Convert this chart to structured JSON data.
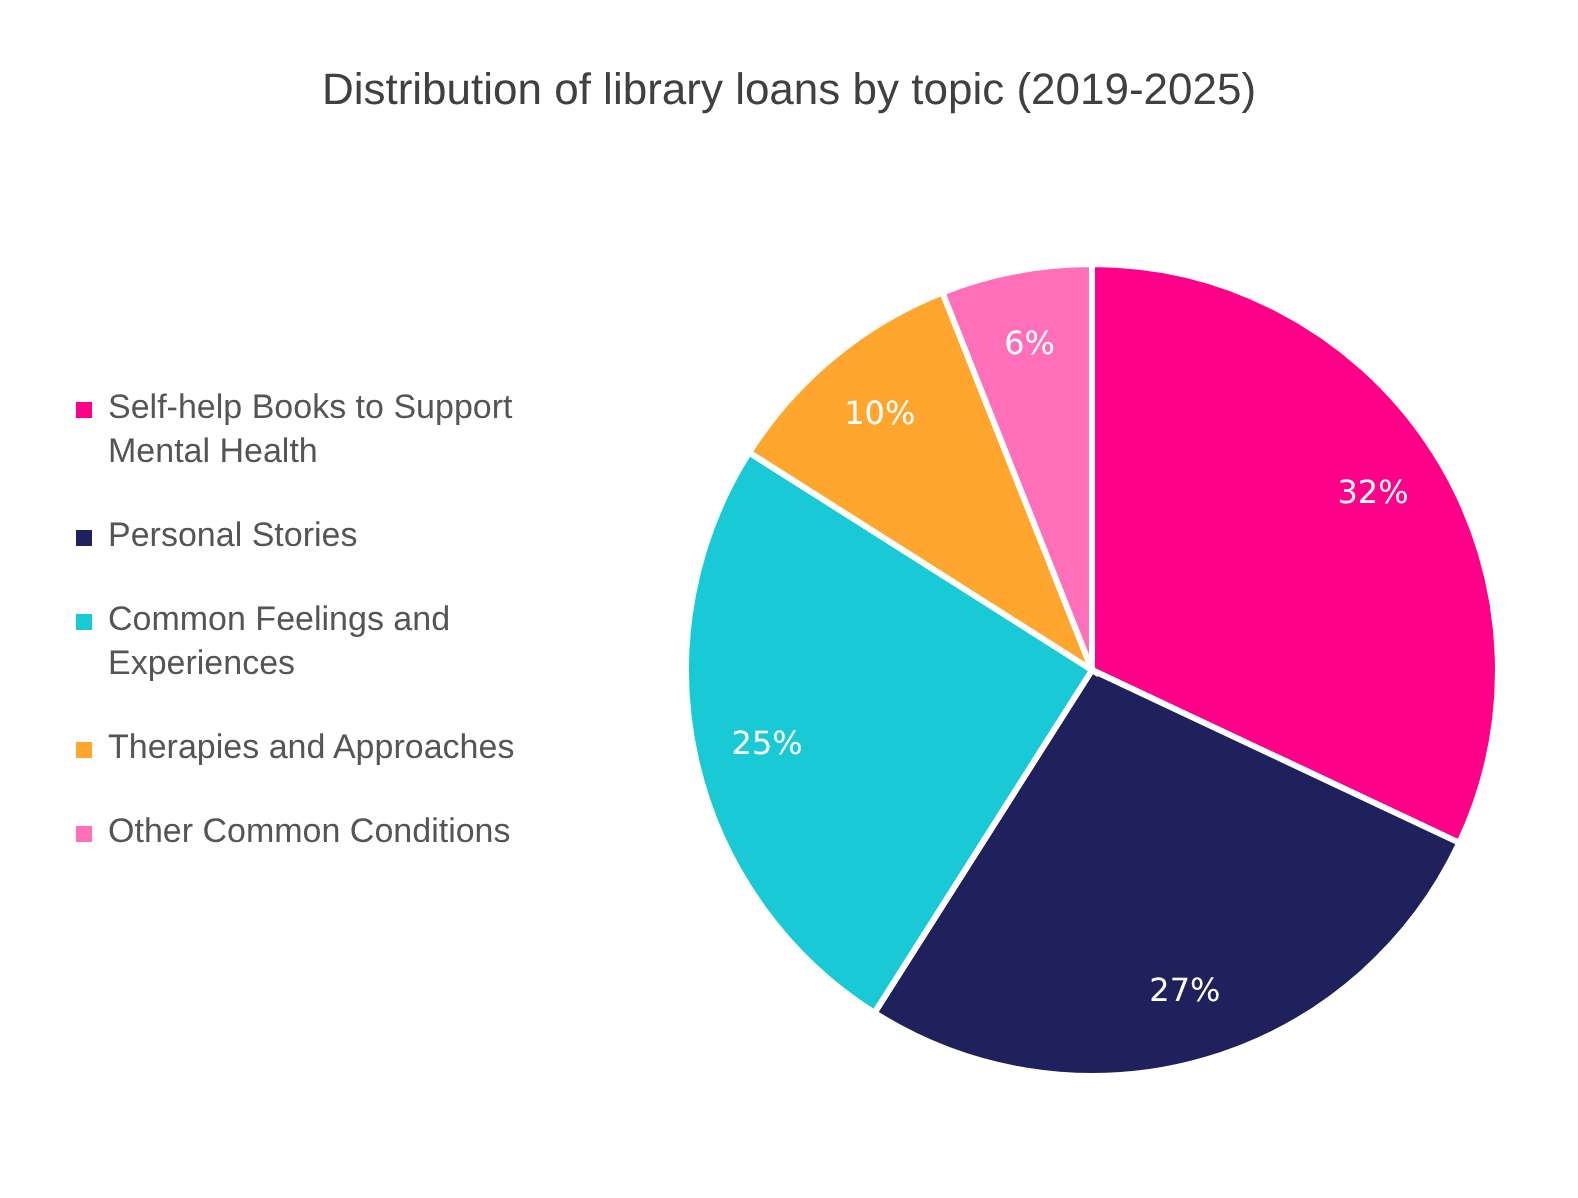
{
  "chart_data": {
    "type": "pie",
    "title": "Distribution of library loans by topic (2019-2025)",
    "categories": [
      "Self-help Books to Support Mental Health",
      "Personal Stories",
      "Common Feelings and Experiences",
      "Therapies and Approaches",
      "Other Common Conditions"
    ],
    "values": [
      32,
      27,
      25,
      10,
      6
    ],
    "colors": [
      "#ff0088",
      "#1f215c",
      "#1ac9d6",
      "#ffa62e",
      "#ff6fba"
    ],
    "value_labels": [
      "32%",
      "27%",
      "25%",
      "10%",
      "6%"
    ],
    "legend": "left"
  }
}
